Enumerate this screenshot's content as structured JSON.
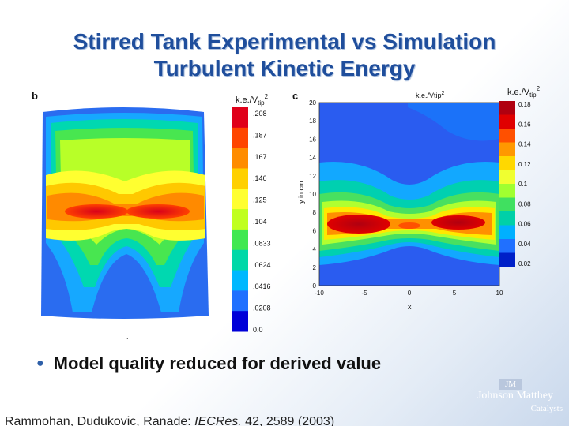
{
  "slide": {
    "title_line1": "Stirred Tank Experimental vs Simulation",
    "title_line2": "Turbulent Kinetic Energy",
    "bullet": "Model quality reduced for derived value",
    "citation_plain": "Rammohan, Dudukovic, Ranade:",
    "citation_italic": "IECRes.",
    "citation_tail": "42, 2589 (2003)"
  },
  "left_plot": {
    "panel_label": "b",
    "legend_title": "k.e./V",
    "legend_sub": "tip",
    "legend_sup": "2",
    "colorbar_labels": [
      ".208",
      ".187",
      ".167",
      ".146",
      ".125",
      ".104",
      ".0833",
      ".0624",
      ".0416",
      ".0208",
      "0.0"
    ],
    "colorbar_colors": [
      "#e0001a",
      "#ff4500",
      "#ff8c00",
      "#ffd000",
      "#ffff30",
      "#c0ff20",
      "#40e850",
      "#00d8a8",
      "#00b8ff",
      "#2070ff",
      "#0000d8"
    ]
  },
  "right_plot": {
    "panel_label": "c",
    "plot_title": "k.e./Vtip",
    "plot_title_sup": "2",
    "legend_title": "k.e./V",
    "legend_sub": "tip",
    "legend_sup": "2",
    "y_axis_label": "y in cm",
    "x_axis_label": "x",
    "y_ticks": [
      "20",
      "18",
      "16",
      "14",
      "12",
      "10",
      "8",
      "6",
      "4",
      "2",
      "0"
    ],
    "x_ticks": [
      "-10",
      "-5",
      "0",
      "5",
      "10"
    ],
    "colorbar_labels": [
      "0.18",
      "0.16",
      "0.14",
      "0.12",
      "0.1",
      "0.08",
      "0.06",
      "0.04",
      "0.02"
    ],
    "colorbar_colors": [
      "#b00010",
      "#e00000",
      "#ff5000",
      "#ff9800",
      "#ffd800",
      "#f0ff30",
      "#a0ff30",
      "#40e060",
      "#00d0a8",
      "#00b0ff",
      "#2070ff",
      "#0020c8"
    ]
  },
  "logo": {
    "badge": "JM",
    "line1": "Johnson Matthey",
    "line2": "Catalysts"
  }
}
